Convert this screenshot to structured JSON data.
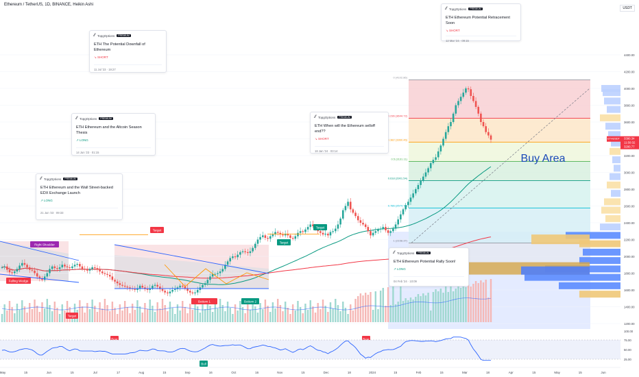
{
  "header": {
    "symbol_line": "Ethereum / TetherUS, 1D, BINANCE, Heikin Ashi"
  },
  "price_unit": "USDT",
  "colors": {
    "up": "#26a69a",
    "down": "#ef5350",
    "accent": "#2962ff",
    "ma_green": "#089981",
    "ma_red": "#f23645",
    "buy_area": "#1848b8"
  },
  "ideas": [
    {
      "author": "TopgOptions",
      "badge": "PREMIUM",
      "title": "ETH Ethereum Potential Retracement Soon",
      "direction": "SHORT",
      "date": "12 Mar '24 · 09:15"
    },
    {
      "author": "TopgOptions",
      "badge": "PREMIUM",
      "title": "ETH The Potential Downfall of Ethereum",
      "direction": "SHORT",
      "date": "11 Jul '23 · 19:27"
    },
    {
      "author": "TopgOptions",
      "badge": "PREMIUM",
      "title": "ETH Ethereum and the Altcoin Season Thesis",
      "direction": "LONG",
      "date": "14 Jun '23 · 01:15"
    },
    {
      "author": "TopgOptions",
      "badge": "PREMIUM",
      "title": "ETH When will the Ethereum selloff end??",
      "direction": "SHORT",
      "date": "18 Jan '24 · 03:14"
    },
    {
      "author": "TopgOptions",
      "badge": "PREMIUM",
      "title": "ETH Ethereum and the Wall Street-backed EDX Exchange Launch",
      "direction": "LONG",
      "date": "21 Jun '23 · 09:33"
    },
    {
      "author": "TopgOptions",
      "badge": "PREMIUM",
      "title": "ETH Ethereum Potential Rally Soon!",
      "direction": "LONG",
      "date": "04 Feb '24 · 10:09"
    }
  ],
  "chart_data": {
    "type": "candlestick",
    "price_axis": {
      "ticks": [
        "4400.00",
        "4200.00",
        "4000.00",
        "3800.00",
        "3600.00",
        "3400.00",
        "3200.00",
        "3000.00",
        "2800.00",
        "2600.00",
        "2400.00",
        "2200.00",
        "2000.00",
        "1800.00",
        "1600.00",
        "1400.00",
        "1200.00"
      ],
      "range": [
        1150,
        4480
      ]
    },
    "rsi_axis": {
      "ticks": [
        "100.00",
        "75.00",
        "50.00",
        "25.00"
      ]
    },
    "time_axis": [
      "May",
      "15",
      "Jun",
      "15",
      "Jul",
      "17",
      "Aug",
      "15",
      "Sep",
      "16",
      "Oct",
      "16",
      "Nov",
      "15",
      "Dec",
      "18",
      "2024",
      "15",
      "Feb",
      "15",
      "Mar",
      "18",
      "Apr",
      "15",
      "May",
      "15",
      "Jun"
    ],
    "price_close": {
      "symbol": "ETHUSDT",
      "price": "3390.34",
      "countdown": "11:50:32",
      "other": "3290.77"
    },
    "fib_levels": [
      {
        "ratio": 0,
        "label": "0 (4102.86)",
        "price": 4102.86
      },
      {
        "ratio": 0.236,
        "label": "0.236 (3644.72)",
        "price": 3644.72
      },
      {
        "ratio": 0.382,
        "label": "0.382 (3360.46)",
        "price": 3360.46
      },
      {
        "ratio": 0.5,
        "label": "0.5 (3131.11)",
        "price": 3131.11
      },
      {
        "ratio": 0.618,
        "label": "0.618 (2901.54)",
        "price": 2901.54
      },
      {
        "ratio": 0.786,
        "label": "0.786 (2574.70)",
        "price": 2574.7
      },
      {
        "ratio": 1,
        "label": "1 (2158.37)",
        "price": 2158.37
      }
    ],
    "annotations": {
      "buy_area": "Buy Area",
      "target_labels": [
        "Target",
        "Target",
        "Target",
        "Target"
      ],
      "patterns": [
        "Right Shoulder",
        "Falling Wedge",
        "Bottom 1",
        "Bottom 2"
      ],
      "rsi_labels": [
        "Bear",
        "Bull",
        "Bear"
      ]
    },
    "closes": [
      1870,
      1880,
      1840,
      1810,
      1800,
      1820,
      1850,
      1890,
      1920,
      1900,
      1870,
      1840,
      1830,
      1800,
      1760,
      1740,
      1720,
      1760,
      1800,
      1850,
      1880,
      1860,
      1850,
      1870,
      1900,
      1880,
      1870,
      1860,
      1880,
      1900,
      1910,
      1880,
      1850,
      1840,
      1830,
      1850,
      1870,
      1860,
      1840,
      1820,
      1800,
      1790,
      1780,
      1760,
      1720,
      1700,
      1680,
      1660,
      1650,
      1640,
      1630,
      1620,
      1610,
      1600,
      1620,
      1650,
      1630,
      1610,
      1600,
      1620,
      1650,
      1660,
      1640,
      1610,
      1590,
      1570,
      1560,
      1580,
      1600,
      1610,
      1630,
      1650,
      1640,
      1620,
      1590,
      1570,
      1560,
      1570,
      1600,
      1630,
      1660,
      1680,
      1720,
      1760,
      1790,
      1790,
      1800,
      1820,
      1850,
      1900,
      1940,
      1980,
      2000,
      1990,
      2020,
      2050,
      2060,
      2050,
      2040,
      2060,
      2100,
      2150,
      2200,
      2230,
      2250,
      2220,
      2210,
      2240,
      2260,
      2290,
      2280,
      2260,
      2250,
      2270,
      2250,
      2220,
      2210,
      2240,
      2280,
      2300,
      2290,
      2320,
      2350,
      2380,
      2360,
      2330,
      2300,
      2280,
      2260,
      2270,
      2250,
      2290,
      2300,
      2330,
      2380,
      2450,
      2550,
      2600,
      2650,
      2560,
      2520,
      2480,
      2430,
      2400,
      2380,
      2350,
      2300,
      2250,
      2280,
      2300,
      2320,
      2330,
      2350,
      2310,
      2280,
      2300,
      2330,
      2380,
      2440,
      2500,
      2560,
      2610,
      2650,
      2700,
      2750,
      2800,
      2850,
      2900,
      2950,
      3000,
      3050,
      3110,
      3150,
      3180,
      3250,
      3320,
      3400,
      3480,
      3550,
      3600,
      3700,
      3800,
      3850,
      3900,
      3950,
      4000,
      3990,
      3910,
      3850,
      3780,
      3700,
      3600,
      3550,
      3480,
      3440,
      3390
    ],
    "volume_overlay": "volume histogram with moving average",
    "rsi_series": "RSI (14) with 70/30 bands"
  }
}
